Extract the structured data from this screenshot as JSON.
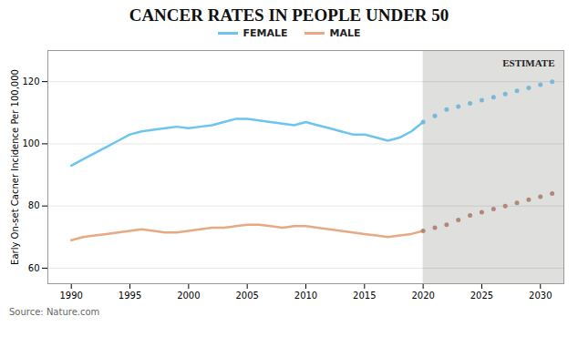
{
  "chart_data": {
    "type": "line",
    "title": "CANCER RATES IN PEOPLE UNDER 50",
    "y_label": "Early On-set Cacner Incidence Per 100,000",
    "source": "Source: Nature.com",
    "xlim": [
      1988,
      2032
    ],
    "xticks": [
      1990,
      1995,
      2000,
      2005,
      2010,
      2015,
      2020,
      2025,
      2030
    ],
    "ylim": [
      55,
      130
    ],
    "yticks": [
      60,
      80,
      100,
      120
    ],
    "grid": "y",
    "legend": "top",
    "estimate_region": {
      "start": 2020,
      "label": "ESTIMATE",
      "color": "#2a2520"
    },
    "series": [
      {
        "name": "FEMALE",
        "color": "#6bc5f0",
        "type": "line",
        "x": [
          1990,
          1991,
          1992,
          1993,
          1994,
          1995,
          1996,
          1997,
          1998,
          1999,
          2000,
          2001,
          2002,
          2003,
          2004,
          2005,
          2006,
          2007,
          2008,
          2009,
          2010,
          2011,
          2012,
          2013,
          2014,
          2015,
          2016,
          2017,
          2018,
          2019,
          2020
        ],
        "values": [
          93,
          95,
          97,
          99,
          101,
          103,
          104,
          104.5,
          105,
          105.5,
          105,
          105.5,
          106,
          107,
          108,
          108,
          107.5,
          107,
          106.5,
          106,
          107,
          106,
          105,
          104,
          103,
          103,
          102,
          101,
          102,
          104,
          107
        ]
      },
      {
        "name": "MALE",
        "color": "#e8a882",
        "type": "line",
        "x": [
          1990,
          1991,
          1992,
          1993,
          1994,
          1995,
          1996,
          1997,
          1998,
          1999,
          2000,
          2001,
          2002,
          2003,
          2004,
          2005,
          2006,
          2007,
          2008,
          2009,
          2010,
          2011,
          2012,
          2013,
          2014,
          2015,
          2016,
          2017,
          2018,
          2019,
          2020
        ],
        "values": [
          69,
          70,
          70.5,
          71,
          71.5,
          72,
          72.5,
          72,
          71.5,
          71.5,
          72,
          72.5,
          73,
          73,
          73.5,
          74,
          74,
          73.5,
          73,
          73.5,
          73.5,
          73,
          72.5,
          72,
          71.5,
          71,
          70.5,
          70,
          70.5,
          71,
          72
        ]
      },
      {
        "color": "#7ab8d8",
        "type": "scatter",
        "marker": "circle",
        "x": [
          2020,
          2021,
          2022,
          2023,
          2024,
          2025,
          2026,
          2027,
          2028,
          2029,
          2030,
          2031
        ],
        "values": [
          107,
          109,
          111,
          112,
          113,
          114,
          115,
          116,
          117,
          118,
          119,
          120
        ]
      },
      {
        "color": "#b08878",
        "type": "scatter",
        "marker": "circle",
        "x": [
          2020,
          2021,
          2022,
          2023,
          2024,
          2025,
          2026,
          2027,
          2028,
          2029,
          2030,
          2031
        ],
        "values": [
          72,
          73,
          74,
          75.5,
          77,
          78,
          79,
          80,
          81,
          82,
          83,
          84
        ]
      }
    ]
  }
}
